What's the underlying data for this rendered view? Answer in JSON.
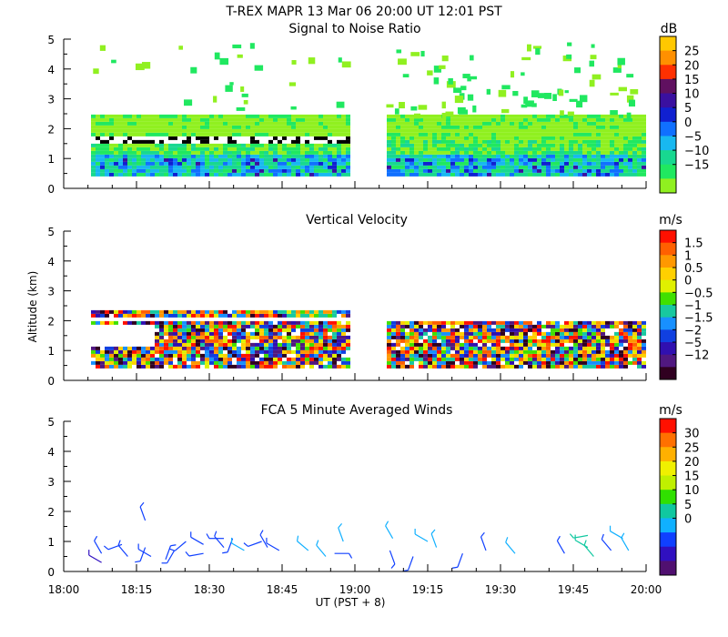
{
  "figure_title": "T-REX   MAPR 13 Mar 06   20:00 UT   12:01   PST",
  "chart_data": [
    {
      "type": "heatmap",
      "title": "Signal to Noise Ratio",
      "xlabel": "",
      "ylabel": "",
      "xlim_hours": [
        18.0,
        20.0
      ],
      "ylim": [
        0,
        5
      ],
      "y_ticks": [
        "0",
        "1",
        "2",
        "3",
        "4",
        "5"
      ],
      "data_gap_utc": [
        "18:59",
        "19:05"
      ],
      "colorbar": {
        "units": "dB",
        "labels": [
          "25",
          "20",
          "15",
          "10",
          "5",
          "0",
          "−5",
          "−10",
          "−15"
        ],
        "colors": [
          "#ffc800",
          "#ff9000",
          "#ff3000",
          "#601060",
          "#3a10a0",
          "#1020d0",
          "#1070ff",
          "#18b8f0",
          "#18d890",
          "#20e860",
          "#90f020"
        ]
      }
    },
    {
      "type": "heatmap",
      "title": "Vertical Velocity",
      "xlabel": "",
      "ylabel": "Altitude (km)",
      "xlim_hours": [
        18.0,
        20.0
      ],
      "ylim": [
        0,
        5
      ],
      "y_ticks": [
        "0",
        "1",
        "2",
        "3",
        "4",
        "5"
      ],
      "colorbar": {
        "units": "m/s",
        "labels": [
          "1.5",
          "1",
          "0.5",
          "0",
          "−0.5",
          "−1",
          "−1.5",
          "−2",
          "−5",
          "−12"
        ],
        "colors": [
          "#ff1000",
          "#ff6000",
          "#ff9800",
          "#ffd000",
          "#e0f000",
          "#40e000",
          "#18c8a0",
          "#1890ff",
          "#1040e0",
          "#3010b0",
          "#501880",
          "#300020"
        ]
      }
    },
    {
      "type": "scatter",
      "title": "FCA 5 Minute Averaged Winds",
      "xlabel": "UT  (PST + 8)",
      "ylabel": "",
      "xlim_hours": [
        18.0,
        20.0
      ],
      "ylim": [
        0,
        5
      ],
      "y_ticks": [
        "0",
        "1",
        "2",
        "3",
        "4",
        "5"
      ],
      "x_ticks": [
        "18:00",
        "18:15",
        "18:30",
        "18:45",
        "19:00",
        "19:15",
        "19:30",
        "19:45",
        "20:00"
      ],
      "colorbar": {
        "units": "m/s",
        "labels": [
          "30",
          "25",
          "20",
          "15",
          "10",
          "5",
          "0"
        ],
        "colors": [
          "#ff1000",
          "#ff7000",
          "#ffb000",
          "#f0f000",
          "#c0f000",
          "#30e000",
          "#10c8a0",
          "#10b0ff",
          "#1040ff",
          "#3010c0",
          "#501070"
        ]
      },
      "wind_barbs": [
        {
          "t": 18.13,
          "alt": 0.6,
          "dir": 330,
          "spd": 6
        },
        {
          "t": 18.13,
          "alt": 0.3,
          "dir": 300,
          "spd": 4
        },
        {
          "t": 18.2,
          "alt": 0.9,
          "dir": 250,
          "spd": 5
        },
        {
          "t": 18.22,
          "alt": 0.5,
          "dir": 320,
          "spd": 6
        },
        {
          "t": 18.28,
          "alt": 1.7,
          "dir": 340,
          "spd": 5
        },
        {
          "t": 18.28,
          "alt": 0.8,
          "dir": 200,
          "spd": 6
        },
        {
          "t": 18.3,
          "alt": 0.5,
          "dir": 300,
          "spd": 5
        },
        {
          "t": 18.35,
          "alt": 0.4,
          "dir": 20,
          "spd": 5
        },
        {
          "t": 18.38,
          "alt": 0.7,
          "dir": 210,
          "spd": 6
        },
        {
          "t": 18.42,
          "alt": 1.0,
          "dir": 230,
          "spd": 6
        },
        {
          "t": 18.48,
          "alt": 0.9,
          "dir": 300,
          "spd": 6
        },
        {
          "t": 18.48,
          "alt": 0.6,
          "dir": 260,
          "spd": 5
        },
        {
          "t": 18.55,
          "alt": 1.1,
          "dir": 270,
          "spd": 5
        },
        {
          "t": 18.55,
          "alt": 0.8,
          "dir": 320,
          "spd": 6
        },
        {
          "t": 18.58,
          "alt": 1.1,
          "dir": 200,
          "spd": 6
        },
        {
          "t": 18.62,
          "alt": 0.7,
          "dir": 300,
          "spd": 9
        },
        {
          "t": 18.68,
          "alt": 1.0,
          "dir": 250,
          "spd": 6
        },
        {
          "t": 18.7,
          "alt": 0.8,
          "dir": 330,
          "spd": 5
        },
        {
          "t": 18.74,
          "alt": 0.7,
          "dir": 300,
          "spd": 5
        },
        {
          "t": 18.84,
          "alt": 0.7,
          "dir": 310,
          "spd": 9
        },
        {
          "t": 18.9,
          "alt": 0.5,
          "dir": 320,
          "spd": 8
        },
        {
          "t": 18.93,
          "alt": 0.6,
          "dir": 90,
          "spd": 6
        },
        {
          "t": 18.96,
          "alt": 1.0,
          "dir": 340,
          "spd": 9
        },
        {
          "t": 19.12,
          "alt": 0.7,
          "dir": 160,
          "spd": 6
        },
        {
          "t": 19.13,
          "alt": 1.1,
          "dir": 330,
          "spd": 9
        },
        {
          "t": 19.2,
          "alt": 0.5,
          "dir": 200,
          "spd": 6
        },
        {
          "t": 19.25,
          "alt": 1.0,
          "dir": 300,
          "spd": 9
        },
        {
          "t": 19.28,
          "alt": 0.8,
          "dir": 340,
          "spd": 8
        },
        {
          "t": 19.37,
          "alt": 0.6,
          "dir": 200,
          "spd": 5
        },
        {
          "t": 19.45,
          "alt": 0.7,
          "dir": 340,
          "spd": 7
        },
        {
          "t": 19.55,
          "alt": 0.6,
          "dir": 320,
          "spd": 9
        },
        {
          "t": 19.72,
          "alt": 0.6,
          "dir": 330,
          "spd": 6
        },
        {
          "t": 19.8,
          "alt": 1.2,
          "dir": 260,
          "spd": 13
        },
        {
          "t": 19.8,
          "alt": 0.8,
          "dir": 300,
          "spd": 12
        },
        {
          "t": 19.82,
          "alt": 0.5,
          "dir": 320,
          "spd": 11
        },
        {
          "t": 19.88,
          "alt": 0.7,
          "dir": 320,
          "spd": 7
        },
        {
          "t": 19.92,
          "alt": 1.1,
          "dir": 300,
          "spd": 8
        },
        {
          "t": 19.94,
          "alt": 0.7,
          "dir": 330,
          "spd": 8
        }
      ]
    }
  ]
}
